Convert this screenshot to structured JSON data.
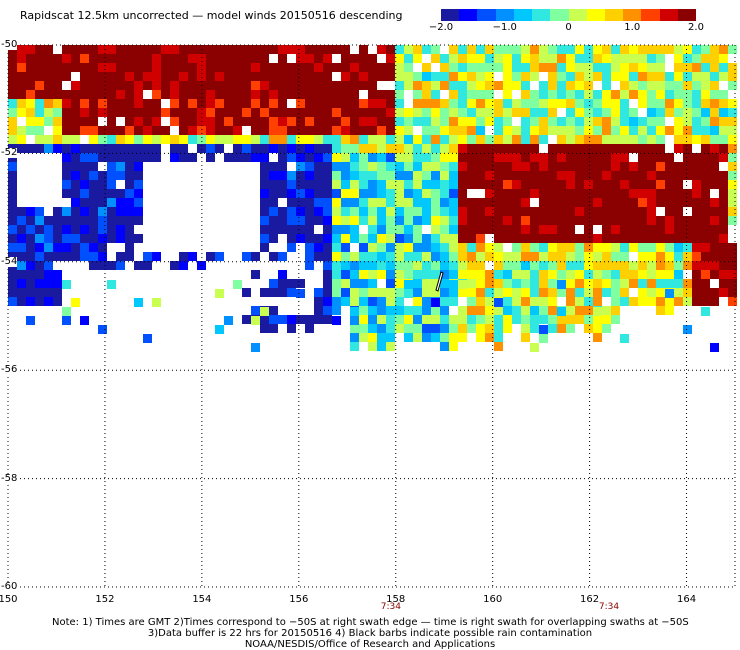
{
  "title": "Rapidscat 12.5km uncorrected — model winds 20150516 descending",
  "colorbar": {
    "ticks": [
      "−2.0",
      "−1.0",
      "0",
      "1.0",
      "2.0"
    ],
    "tick_values": [
      -2.0,
      -1.0,
      0,
      1.0,
      2.0
    ],
    "range": [
      -2.0,
      2.0
    ],
    "colors": [
      "#1a1aa0",
      "#0000ff",
      "#0050ff",
      "#0090ff",
      "#00c8ff",
      "#30e8e0",
      "#80ffa0",
      "#c8ff50",
      "#ffff00",
      "#ffd000",
      "#ff9000",
      "#ff4000",
      "#d00000",
      "#8b0000"
    ]
  },
  "axes": {
    "lon_ticks": [
      "150",
      "152",
      "154",
      "156",
      "158",
      "160",
      "162",
      "164"
    ],
    "lat_ticks": [
      "-50",
      "-52",
      "-54",
      "-56",
      "-58",
      "-60"
    ],
    "lon_range": [
      150,
      165
    ],
    "lat_range": [
      -60,
      -50
    ]
  },
  "times": [
    {
      "label": "7:34",
      "lon": 157.9
    },
    {
      "label": "7:34",
      "lon": 162.4
    }
  ],
  "notes": [
    "Note: 1) Times are GMT 2)Times correspond to −50S at right swath edge — time is right swath for overlapping swaths at −50S",
    "3)Data buffer is 22 hrs for 20150516 4) Black barbs indicate possible rain contamination",
    "NOAA/NESDIS/Office of Research and Applications"
  ]
}
